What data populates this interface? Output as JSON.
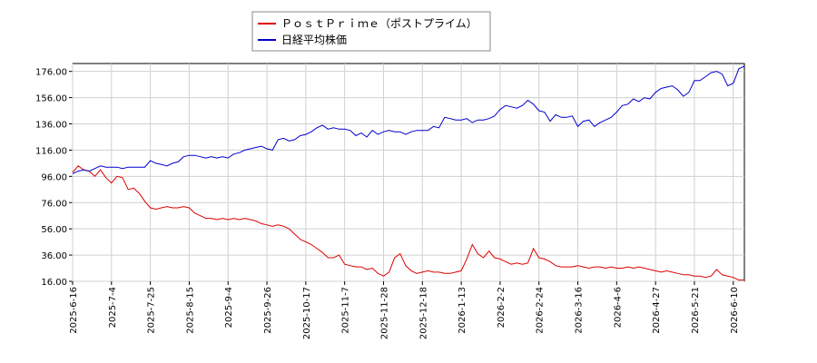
{
  "chart_data": {
    "type": "line",
    "categories": [
      "2025-6-16",
      null,
      null,
      null,
      null,
      null,
      null,
      "2025-7-4",
      null,
      null,
      null,
      null,
      null,
      null,
      "2025-7-25",
      null,
      null,
      null,
      null,
      null,
      null,
      "2025-8-15",
      null,
      null,
      null,
      null,
      null,
      null,
      "2025-9-4",
      null,
      null,
      null,
      null,
      null,
      null,
      "2025-9-26",
      null,
      null,
      null,
      null,
      null,
      null,
      "2025-10-17",
      null,
      null,
      null,
      null,
      null,
      null,
      "2025-11-7",
      null,
      null,
      null,
      null,
      null,
      null,
      "2025-11-28",
      null,
      null,
      null,
      null,
      null,
      null,
      "2025-12-18",
      null,
      null,
      null,
      null,
      null,
      null,
      "2026-1-13",
      null,
      null,
      null,
      null,
      null,
      null,
      "2026-2-2",
      null,
      null,
      null,
      null,
      null,
      null,
      "2026-2-24",
      null,
      null,
      null,
      null,
      null,
      null,
      "2026-3-16",
      null,
      null,
      null,
      null,
      null,
      null,
      "2026-4-6",
      null,
      null,
      null,
      null,
      null,
      null,
      "2026-4-27",
      null,
      null,
      null,
      null,
      null,
      null,
      "2026-5-21",
      null,
      null,
      null,
      null,
      null,
      null,
      "2026-6-10",
      null,
      null
    ],
    "series": [
      {
        "name": "ＰｏｓｔＰｒｉｍｅ（ポストプライム）",
        "color": "#dd0000",
        "values": [
          99,
          104,
          101,
          100,
          96,
          101,
          95,
          91,
          96,
          95,
          86,
          87,
          83,
          77,
          72,
          71,
          72,
          73,
          72,
          72,
          73,
          72,
          68,
          66,
          64,
          64,
          63,
          64,
          63,
          64,
          63,
          64,
          63,
          62,
          60,
          59,
          58,
          59,
          58,
          56,
          52,
          48,
          46,
          44,
          41,
          38,
          34,
          34,
          36,
          29,
          28,
          27,
          27,
          25,
          26,
          22,
          20,
          23,
          34,
          37,
          28,
          24,
          22,
          23,
          24,
          23,
          23,
          22,
          22,
          23,
          24,
          33,
          44,
          37,
          34,
          39,
          34,
          33,
          31,
          29,
          30,
          29,
          30,
          41,
          34,
          33,
          31,
          28,
          27,
          27,
          27,
          28,
          27,
          26,
          27,
          27,
          26,
          27,
          26,
          26,
          27,
          26,
          27,
          26,
          25,
          24,
          23,
          24,
          23,
          22,
          21,
          21,
          20,
          20,
          19,
          20,
          25,
          21,
          20,
          19,
          17,
          17
        ]
      },
      {
        "name": "日経平均株価",
        "color": "#0000cc",
        "values": [
          98,
          100,
          101,
          100,
          102,
          104,
          103,
          103,
          103,
          102,
          103,
          103,
          103,
          103,
          108,
          106,
          105,
          104,
          106,
          107,
          111,
          112,
          112,
          111,
          110,
          111,
          110,
          111,
          110,
          113,
          114,
          116,
          117,
          118,
          119,
          117,
          116,
          124,
          125,
          123,
          124,
          127,
          128,
          130,
          133,
          135,
          132,
          133,
          132,
          132,
          131,
          127,
          129,
          126,
          131,
          128,
          130,
          131,
          130,
          130,
          128,
          130,
          131,
          131,
          131,
          134,
          133,
          141,
          140,
          139,
          139,
          140,
          137,
          139,
          139,
          140,
          142,
          147,
          150,
          149,
          148,
          150,
          154,
          151,
          146,
          145,
          138,
          143,
          141,
          141,
          142,
          134,
          138,
          139,
          134,
          137,
          139,
          141,
          145,
          150,
          151,
          155,
          153,
          156,
          155,
          160,
          163,
          164,
          165,
          162,
          157,
          160,
          169,
          169,
          172,
          175,
          176,
          174,
          165,
          167,
          178,
          180
        ]
      }
    ],
    "ylim": [
      16,
      182
    ],
    "yticks": [
      {
        "value": 16,
        "label": "16.00"
      },
      {
        "value": 36,
        "label": "36.00"
      },
      {
        "value": 56,
        "label": "56.00"
      },
      {
        "value": 76,
        "label": "76.00"
      },
      {
        "value": 96,
        "label": "96.00"
      },
      {
        "value": 116,
        "label": "116.00"
      },
      {
        "value": 136,
        "label": "136.00"
      },
      {
        "value": 156,
        "label": "156.00"
      },
      {
        "value": 176,
        "label": "176.00"
      }
    ],
    "grid": true
  }
}
